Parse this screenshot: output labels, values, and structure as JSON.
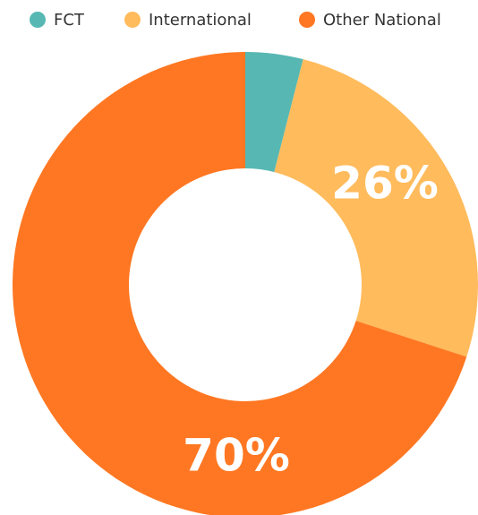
{
  "chart_data": {
    "type": "donut",
    "categories": [
      "FCT",
      "International",
      "Other National"
    ],
    "values": [
      4,
      26,
      70
    ],
    "value_labels": [
      null,
      "26%",
      "70%"
    ],
    "colors": [
      "#57b8b3",
      "#ffbb5c",
      "#ff7722"
    ],
    "legend": "top"
  }
}
